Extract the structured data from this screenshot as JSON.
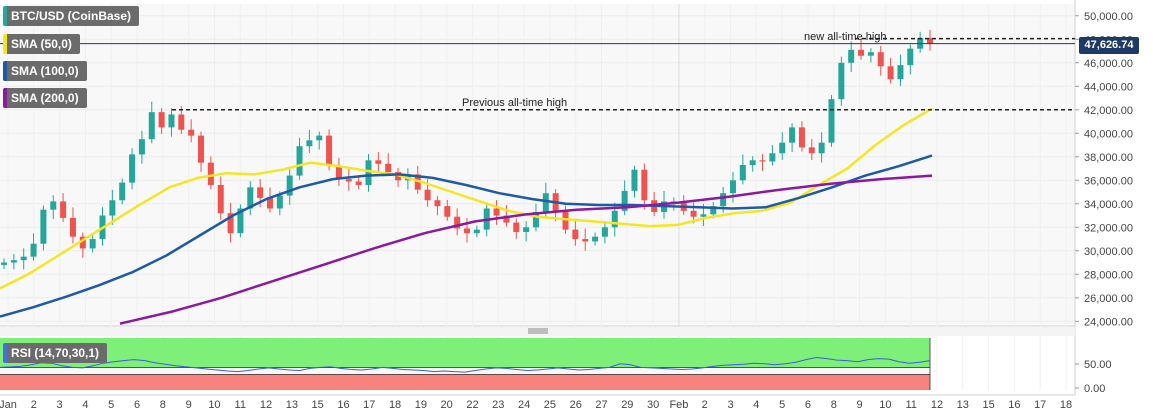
{
  "chart_data": {
    "type": "candlestick",
    "title": "BTC/USD (CoinBase)",
    "indicators": [
      {
        "name": "SMA (50,0)",
        "color": "#f5e625"
      },
      {
        "name": "SMA (100,0)",
        "color": "#1f5aa6"
      },
      {
        "name": "SMA (200,0)",
        "color": "#8b1a9e"
      }
    ],
    "last_price": "47,626.74",
    "annotations": {
      "new_ath": "new all-time high",
      "prev_ath": "Previous all-time high",
      "new_ath_level": 48050,
      "prev_ath_level": 42000
    },
    "price_axis": {
      "ylim": [
        23600,
        51000
      ],
      "ticks": [
        "50,000.00",
        "48,000.00",
        "46,000.00",
        "44,000.00",
        "42,000.00",
        "40,000.00",
        "38,000.00",
        "36,000.00",
        "34,000.00",
        "32,000.00",
        "30,000.00",
        "28,000.00",
        "26,000.00",
        "24,000.00"
      ]
    },
    "x_axis": {
      "labels": [
        "Jan",
        "2",
        "3",
        "4",
        "5",
        "6",
        "8",
        "9",
        "10",
        "11",
        "12",
        "13",
        "15",
        "16",
        "17",
        "18",
        "19",
        "20",
        "22",
        "23",
        "24",
        "25",
        "26",
        "27",
        "29",
        "30",
        "Feb",
        "2",
        "3",
        "4",
        "5",
        "6",
        "8",
        "9",
        "10",
        "11",
        "12",
        "13",
        "15",
        "16",
        "17",
        "18"
      ]
    },
    "close_series": [
      29000,
      29200,
      29500,
      30600,
      33500,
      34200,
      32800,
      31200,
      30200,
      31000,
      33000,
      34300,
      35800,
      38200,
      39500,
      41800,
      40500,
      41600,
      40300,
      39800,
      37500,
      35600,
      33200,
      31500,
      33600,
      35400,
      34500,
      33600,
      34700,
      36400,
      38900,
      39400,
      39800,
      37200,
      36100,
      35900,
      35600,
      37700,
      37400,
      36700,
      36000,
      36500,
      35200,
      34300,
      33800,
      32900,
      31900,
      31500,
      31800,
      33600,
      33000,
      32400,
      31600,
      32000,
      33300,
      34900,
      33300,
      31800,
      31000,
      30800,
      31200,
      32000,
      33400,
      35100,
      36900,
      34300,
      33300,
      34200,
      34200,
      33400,
      32900,
      33100,
      33800,
      34900,
      36000,
      37300,
      37700,
      37600,
      38300,
      39200,
      40500,
      38800,
      38300,
      39200,
      42900,
      46000,
      47100,
      46600,
      46900,
      45700,
      44600,
      45800,
      47200,
      48100,
      47600
    ],
    "sma_series": [
      {
        "name": "SMA (50,0)",
        "values": [
          26800,
          28000,
          29500,
          31000,
          32500,
          34000,
          35400,
          36200,
          36600,
          36500,
          36900,
          37500,
          37200,
          36800,
          36500,
          35800,
          35000,
          34200,
          33400,
          32900,
          32700,
          32500,
          32300,
          32100,
          32200,
          32800,
          33200,
          33400,
          34100,
          35600,
          37000,
          39000,
          40700,
          42100
        ]
      },
      {
        "name": "SMA (100,0)",
        "values": [
          24400,
          25200,
          26100,
          27100,
          28200,
          29600,
          31300,
          33000,
          34400,
          35400,
          36100,
          36400,
          36500,
          36200,
          35600,
          34900,
          34400,
          34000,
          33900,
          33900,
          33800,
          33700,
          33600,
          33700,
          34500,
          35400,
          36400,
          37200,
          38100
        ]
      },
      {
        "name": "SMA (200,0)",
        "values": [
          23800,
          24800,
          26000,
          27400,
          28800,
          30200,
          31500,
          32500,
          33100,
          33500,
          33700,
          34100,
          34600,
          35200,
          35700,
          36100,
          36400
        ]
      }
    ],
    "rsi": {
      "label": "RSI (14,70,30,1)",
      "ticks": [
        "50.00",
        "0.00"
      ],
      "values": [
        55,
        56,
        57,
        60,
        64,
        63,
        58,
        55,
        54,
        58,
        63,
        66,
        68,
        70,
        68,
        64,
        61,
        58,
        56,
        54,
        52,
        50,
        48,
        47,
        49,
        52,
        54,
        52,
        50,
        49,
        53,
        55,
        56,
        53,
        51,
        50,
        52,
        55,
        53,
        51,
        50,
        49,
        47,
        48,
        47,
        46,
        49,
        52,
        54,
        53,
        51,
        49,
        50,
        52,
        54,
        52,
        50,
        51,
        53,
        55,
        62,
        60,
        55,
        54,
        53,
        52,
        51,
        52,
        54,
        57,
        59,
        60,
        61,
        63,
        62,
        60,
        62,
        65,
        70,
        74,
        72,
        69,
        68,
        66,
        70,
        72,
        71,
        66,
        63,
        65,
        68
      ]
    }
  }
}
